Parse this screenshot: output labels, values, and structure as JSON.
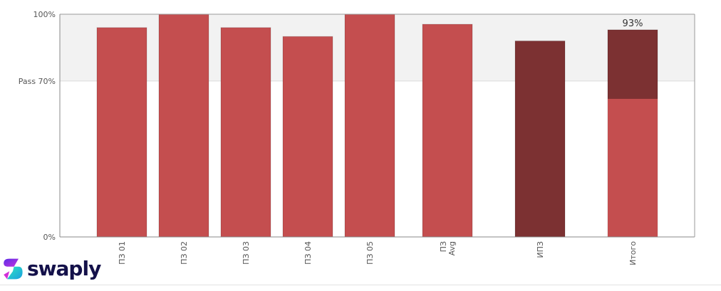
{
  "chart_data": {
    "type": "bar",
    "categories": [
      "ПЗ 01",
      "ПЗ 02",
      "ПЗ 03",
      "ПЗ 04",
      "ПЗ 05",
      "ПЗ\nAvg",
      "ИПЗ",
      "Итого"
    ],
    "series": [
      {
        "values": [
          94,
          100,
          94,
          90,
          100,
          95.5,
          88,
          93
        ],
        "colors": [
          "#c44e4f",
          "#c44e4f",
          "#c44e4f",
          "#c44e4f",
          "#c44e4f",
          "#c44e4f",
          "#7c3132",
          "#7c3132"
        ]
      },
      {
        "values": [
          null,
          null,
          null,
          null,
          null,
          null,
          null,
          62
        ],
        "color": "#c44e4f"
      }
    ],
    "data_labels": {
      "Итого": "93%"
    },
    "y_ticks": [
      {
        "value": 0,
        "label": "0%"
      },
      {
        "value": 70,
        "label": "Pass 70%"
      },
      {
        "value": 100,
        "label": "100%"
      }
    ],
    "ylim": [
      0,
      100
    ],
    "pass_band": {
      "from": 70,
      "to": 100,
      "color": "#f2f2f2"
    },
    "grid": false
  },
  "logo": {
    "text": "swaply"
  }
}
